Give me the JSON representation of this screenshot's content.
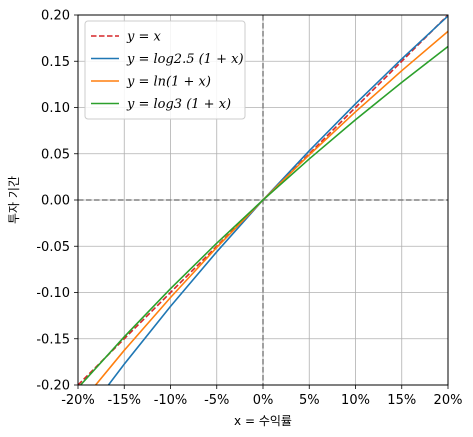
{
  "chart_data": {
    "type": "line",
    "xlabel": "x = 수익률",
    "ylabel": "투자 기간",
    "xlim": [
      -0.2,
      0.2
    ],
    "ylim": [
      -0.2,
      0.2
    ],
    "x_ticks": [
      -0.2,
      -0.15,
      -0.1,
      -0.05,
      0,
      0.05,
      0.1,
      0.15,
      0.2
    ],
    "x_tick_labels": [
      "-20%",
      "-15%",
      "-10%",
      "-5%",
      "0%",
      "5%",
      "10%",
      "15%",
      "20%"
    ],
    "y_ticks": [
      -0.2,
      -0.15,
      -0.1,
      -0.05,
      0,
      0.05,
      0.1,
      0.15,
      0.2
    ],
    "y_tick_labels": [
      "-0.20",
      "-0.15",
      "-0.10",
      "-0.05",
      "0.00",
      "0.05",
      "0.10",
      "0.15",
      "0.20"
    ],
    "grid": true,
    "legend_position": "top-left",
    "reference_lines": {
      "x": 0,
      "y": 0,
      "color": "#808080",
      "style": "dashed"
    },
    "x": [
      -0.2,
      -0.15,
      -0.1,
      -0.05,
      0,
      0.05,
      0.1,
      0.15,
      0.2
    ],
    "series": [
      {
        "name": "y = x",
        "color": "#d62728",
        "style": "dashed",
        "values": [
          -0.2,
          -0.15,
          -0.1,
          -0.05,
          0,
          0.05,
          0.1,
          0.15,
          0.2
        ]
      },
      {
        "name": "y = log2.5 (1 + x)",
        "color": "#1f77b4",
        "style": "solid",
        "values": [
          -0.2435,
          -0.1774,
          -0.115,
          -0.056,
          0,
          0.0532,
          0.104,
          0.1525,
          0.199
        ]
      },
      {
        "name": "y = ln(1 + x)",
        "color": "#ff7f0e",
        "style": "solid",
        "values": [
          -0.2231,
          -0.1625,
          -0.1054,
          -0.0513,
          0,
          0.0488,
          0.0953,
          0.1398,
          0.1823
        ]
      },
      {
        "name": "y = log3 (1 + x)",
        "color": "#2ca02c",
        "style": "solid",
        "values": [
          -0.2031,
          -0.1479,
          -0.0959,
          -0.0467,
          0,
          0.0444,
          0.0868,
          0.1272,
          0.166
        ]
      }
    ]
  }
}
